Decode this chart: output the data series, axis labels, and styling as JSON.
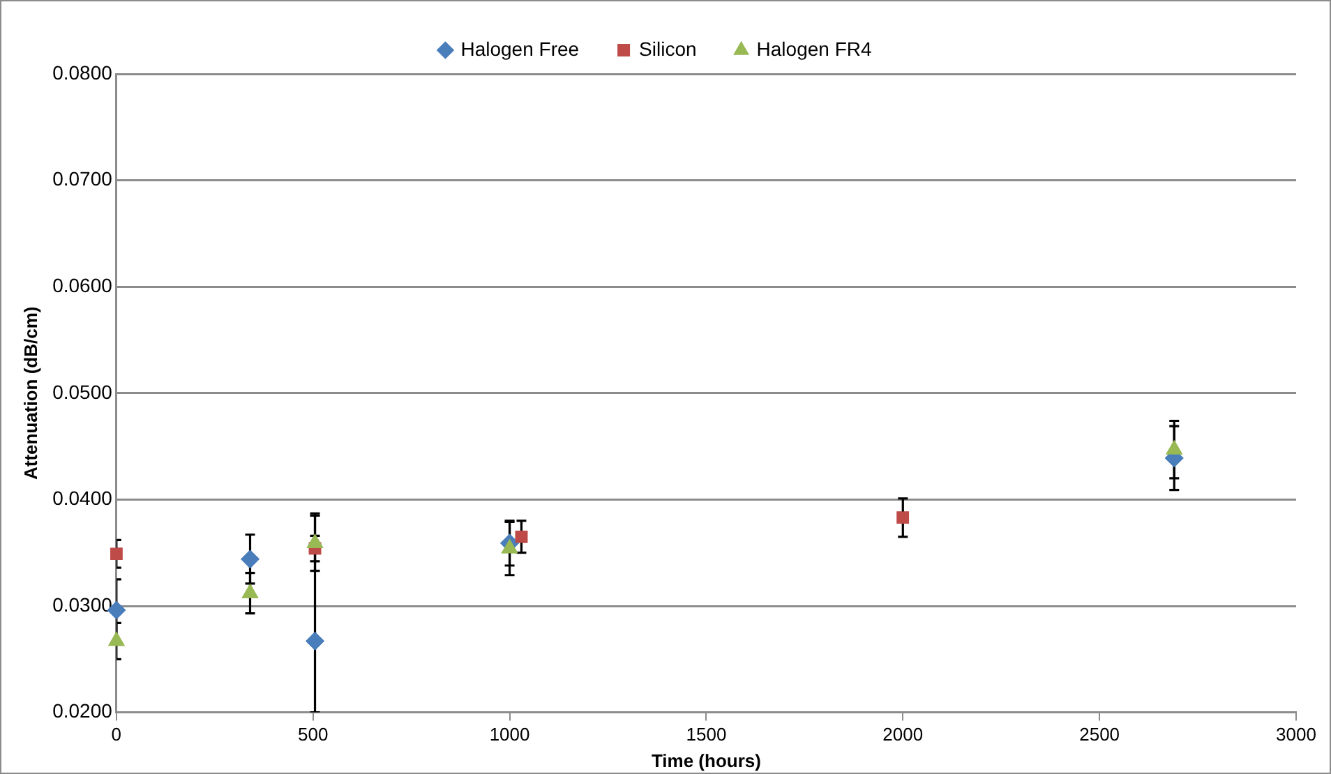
{
  "chart_data": {
    "type": "scatter",
    "xlabel": "Time (hours)",
    "ylabel": "Attenuation (dB/cm)",
    "xlim": [
      0,
      3000
    ],
    "xticks": [
      0,
      500,
      1000,
      1500,
      2000,
      2500,
      3000
    ],
    "ylim": [
      0.02,
      0.08
    ],
    "yticks": [
      {
        "value": 0.02,
        "label": "0.0200"
      },
      {
        "value": 0.03,
        "label": "0.0300"
      },
      {
        "value": 0.04,
        "label": "0.0400"
      },
      {
        "value": 0.05,
        "label": "0.0500"
      },
      {
        "value": 0.06,
        "label": "0.0600"
      },
      {
        "value": 0.07,
        "label": "0.0700"
      },
      {
        "value": 0.08,
        "label": "0.0800"
      }
    ],
    "grid": "y",
    "legend": "top",
    "series": [
      {
        "name": "Halogen Free",
        "color": "#4a7ebb",
        "marker": "diamond",
        "x": [
          0,
          340,
          505,
          1000,
          2690
        ],
        "values": [
          0.0296,
          0.0344,
          0.0267,
          0.0359,
          0.0439
        ],
        "errors": [
          0.0029,
          0.0023,
          [
            0.02,
            0.0387
          ],
          0.0021,
          0.003
        ]
      },
      {
        "name": "Silicon",
        "color": "#be4b48",
        "marker": "square",
        "x": [
          0,
          505,
          1030,
          2000
        ],
        "values": [
          0.0349,
          0.0354,
          0.0365,
          0.0383
        ],
        "errors": [
          0.0013,
          0.0012,
          0.0015,
          0.0018
        ]
      },
      {
        "name": "Halogen FR4",
        "color": "#98b954",
        "marker": "triangle",
        "x": [
          0,
          340,
          505,
          1000,
          2690
        ],
        "values": [
          0.0267,
          0.0312,
          0.0359,
          0.0354,
          0.0447
        ],
        "errors": [
          0.0017,
          0.0019,
          0.0026,
          0.0025,
          0.0027
        ]
      }
    ]
  }
}
